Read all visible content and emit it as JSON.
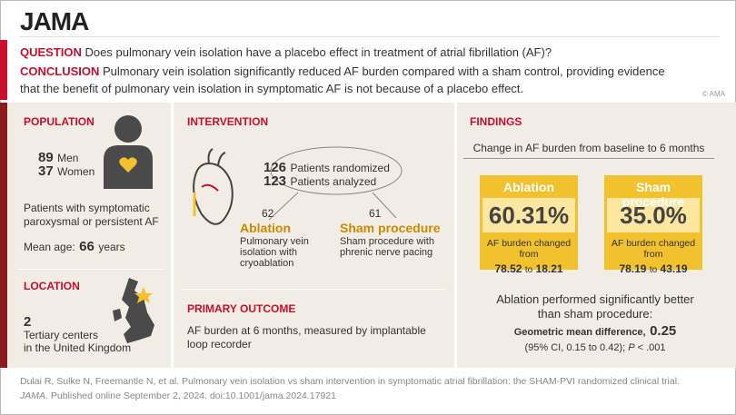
{
  "header": {
    "logo": "JAMA",
    "question_label": "QUESTION",
    "question": "Does pulmonary vein isolation have a placebo effect in treatment of atrial fibrillation (AF)?",
    "conclusion_label": "CONCLUSION",
    "conclusion_line1": "Pulmonary vein isolation significantly reduced AF burden compared with a sham control, providing evidence",
    "conclusion_line2": "that the benefit of pulmonary vein isolation in symptomatic AF is not because of a placebo effect.",
    "copyright": "© AMA"
  },
  "population": {
    "title": "POPULATION",
    "men_count": "89",
    "men_label": "Men",
    "women_count": "37",
    "women_label": "Women",
    "description_line1": "Patients with symptomatic",
    "description_line2": "paroxysmal or persistent AF",
    "age_label": "Mean age:",
    "age_value": "66",
    "age_unit": "years"
  },
  "location": {
    "title": "LOCATION",
    "count": "2",
    "line1": "Tertiary centers",
    "line2": "in the United Kingdom"
  },
  "intervention": {
    "title": "INTERVENTION",
    "randomized_count": "126",
    "randomized_label": "Patients randomized",
    "analyzed_count": "123",
    "analyzed_label": "Patients analyzed",
    "arms": [
      {
        "count": "62",
        "name": "Ablation",
        "line1": "Pulmonary vein",
        "line2": "isolation with",
        "line3": "cryoablation"
      },
      {
        "count": "61",
        "name": "Sham procedure",
        "line1": "Sham procedure with",
        "line2": "phrenic nerve pacing"
      }
    ]
  },
  "outcome": {
    "title": "PRIMARY OUTCOME",
    "line1": "AF burden at 6 months, measured by implantable",
    "line2": "loop recorder"
  },
  "findings": {
    "title": "FINDINGS",
    "subtitle": "Change in AF burden from baseline to 6 months",
    "boxes": [
      {
        "name": "Ablation",
        "value": "60.31%",
        "caption": "AF burden changed from",
        "from": "78.52",
        "to_word": "to",
        "to": "18.21"
      },
      {
        "name": "Sham procedure",
        "value": "35.0%",
        "caption": "AF burden changed from",
        "from": "78.19",
        "to_word": "to",
        "to": "43.19"
      }
    ],
    "summary_line1": "Ablation performed significantly better",
    "summary_line2": "than sham procedure:",
    "gmd_label": "Geometric mean difference,",
    "gmd_value": "0.25",
    "ci": "(95% CI, 0.15 to 0.42);",
    "p_label": "P",
    "p_value": "< .001"
  },
  "citation": {
    "line1": "Dulai R, Sulke N, Freemantle N, et al. Pulmonary vein isolation vs sham intervention in symptomatic atrial fibrillation: the SHAM-PVI randomized clinical trial.",
    "journal": "JAMA",
    "line2_rest": ". Published online September 2, 2024. doi:10.1001/jama.2024.17921"
  }
}
